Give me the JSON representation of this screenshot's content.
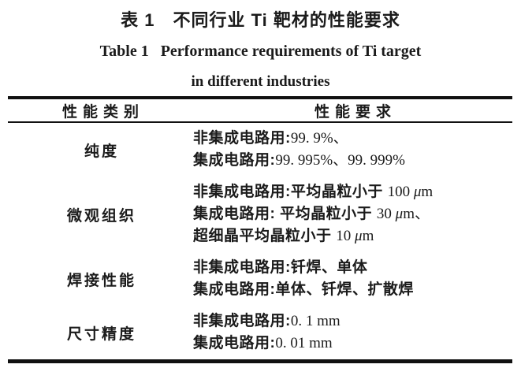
{
  "page": {
    "background": "#ffffff",
    "text_color": "#1b1b1b",
    "rule_color": "#111111"
  },
  "title": {
    "zh": "表 1　不同行业 Ti 靶材的性能要求",
    "en_line1": "Table 1   Performance requirements of Ti target",
    "en_line2": "in different industries"
  },
  "table": {
    "headers": {
      "category": "性能类别",
      "requirement": "性能要求"
    },
    "rows": [
      {
        "category": "纯度",
        "lines": [
          [
            {
              "t": "非集成电路用:",
              "s": "zh"
            },
            {
              "t": "99. 9%",
              "s": "num"
            },
            {
              "t": "、",
              "s": "num"
            }
          ],
          [
            {
              "t": "集成电路用:",
              "s": "zh"
            },
            {
              "t": "99. 995%",
              "s": "num"
            },
            {
              "t": "、",
              "s": "num"
            },
            {
              "t": "99. 999%",
              "s": "num"
            }
          ]
        ]
      },
      {
        "category": "微观组织",
        "lines": [
          [
            {
              "t": "非集成电路用:平均晶粒小于 ",
              "s": "zh"
            },
            {
              "t": "100 ",
              "s": "num"
            },
            {
              "t": "μ",
              "s": "mu"
            },
            {
              "t": "m",
              "s": "num"
            }
          ],
          [
            {
              "t": "集成电路用: 平均晶粒小于 ",
              "s": "zh"
            },
            {
              "t": "30 ",
              "s": "num"
            },
            {
              "t": "μ",
              "s": "mu"
            },
            {
              "t": "m",
              "s": "num"
            },
            {
              "t": "、",
              "s": "num"
            }
          ],
          [
            {
              "t": "超细晶平均晶粒小于 ",
              "s": "zh"
            },
            {
              "t": "10 ",
              "s": "num"
            },
            {
              "t": "μ",
              "s": "mu"
            },
            {
              "t": "m",
              "s": "num"
            }
          ]
        ]
      },
      {
        "category": "焊接性能",
        "lines": [
          [
            {
              "t": "非集成电路用:钎焊、单体",
              "s": "zh"
            }
          ],
          [
            {
              "t": "集成电路用:单体、钎焊、扩散焊",
              "s": "zh"
            }
          ]
        ]
      },
      {
        "category": "尺寸精度",
        "lines": [
          [
            {
              "t": "非集成电路用:",
              "s": "zh"
            },
            {
              "t": "0. 1 mm",
              "s": "num"
            }
          ],
          [
            {
              "t": "集成电路用:",
              "s": "zh"
            },
            {
              "t": "0. 01 mm",
              "s": "num"
            }
          ]
        ]
      }
    ]
  }
}
